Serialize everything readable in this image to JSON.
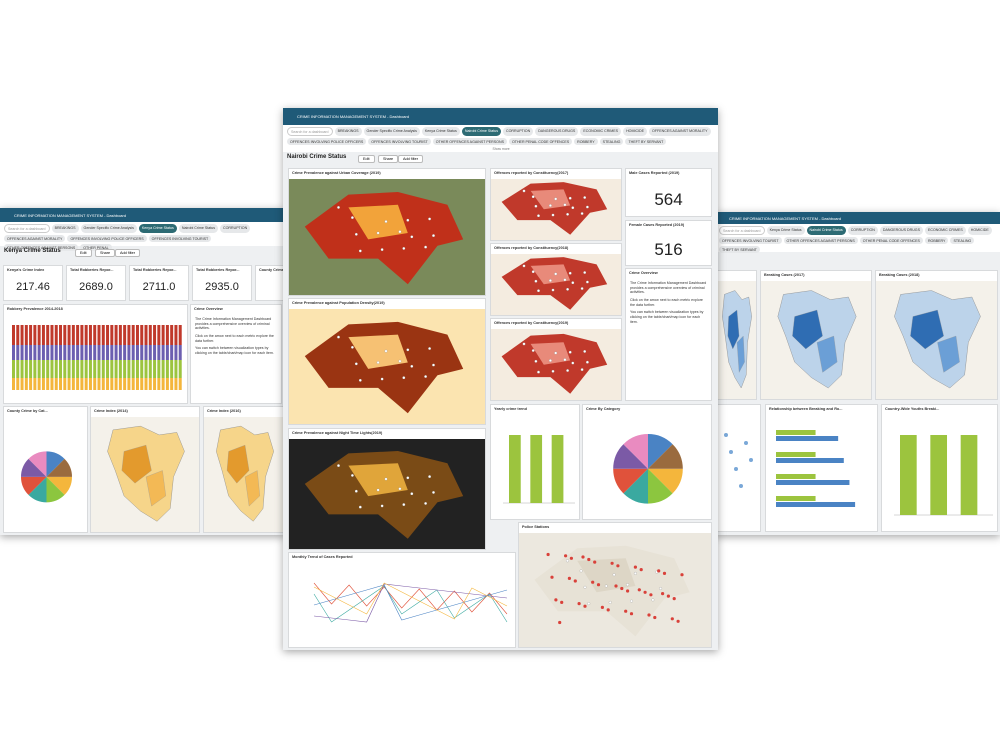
{
  "windows": [
    {
      "header": "CRIME INFORMATION MANAGEMENT SYSTEM - Dashboard",
      "search": "Search for a dashboard",
      "tabs": [
        "BREAKINGS",
        "Gender Specific Crime Analysis",
        "Kenya Crime Status",
        "Nairobi Crime Status",
        "CORRUPTION",
        "OFFENCES AGAINST MORALITY",
        "OFFENCES INVOLVING POLICE OFFICERS",
        "OFFENCES INVOLVING TOURIST",
        "OTHER OFFENCES AGAINST PERSONS",
        "OTHER PENAL"
      ],
      "active_tab": "Kenya Crime Status",
      "title": "Kenya Crime Status",
      "buttons": [
        "Edit",
        "Share",
        "Add filter"
      ],
      "tiles": [
        {
          "title": "Kenya's Crime Index",
          "value": "217.46"
        },
        {
          "title": "Total Robberies Repor...",
          "value": "2689.0"
        },
        {
          "title": "Total Robberies Repor...",
          "value": "2711.0"
        },
        {
          "title": "Total Robberies Repor...",
          "value": "2935.0"
        },
        {
          "title": "County Crime In",
          "value": ""
        }
      ],
      "panels": [
        "Robbery Prevalence 2014-2018",
        "Crime Overview",
        "County Crime by Cat...",
        "Crime Index (2014)",
        "Crime Index (2016)"
      ]
    },
    {
      "header": "CRIME INFORMATION MANAGEMENT SYSTEM - Dashboard",
      "search": "Search for a dashboard",
      "tabs": [
        "Kenya Crime Status",
        "Nairobi Crime Status",
        "CORRUPTION",
        "DANGEROUS DRUGS",
        "ECONOMIC CRIMES",
        "HOMICIDE",
        "OFFENCES INVOLVING TOURIST",
        "OTHER OFFENCES AGAINST PERSONS",
        "OTHER PENAL CODE OFFENCES",
        "ROBBERY",
        "STEALING",
        "THEFT BY SERVANT"
      ],
      "active_tab": "Nairobi Crime Status",
      "title": "",
      "buttons": [],
      "tiles": [],
      "panels": [
        "Breaking Cases (2017)",
        "Breaking Cases (2018)",
        "Relationship between Breaking and Ro...",
        "Country-Wide Youths Breaki..."
      ]
    },
    {
      "header": "CRIME INFORMATION MANAGEMENT SYSTEM - Dashboard",
      "search": "Search for a dashboard",
      "tabs": [
        "BREAKINGS",
        "Gender Specific Crime Analysis",
        "Kenya Crime Status",
        "Nairobi Crime Status",
        "CORRUPTION",
        "DANGEROUS DRUGS",
        "ECONOMIC CRIMES",
        "HOMICIDE",
        "OFFENCES AGAINST MORALITY",
        "OFFENCES INVOLVING POLICE OFFICERS",
        "OFFENCES INVOLVING TOURIST",
        "OTHER OFFENCES AGAINST PERSONS",
        "OTHER PENAL CODE OFFENCES",
        "ROBBERY",
        "STEALING",
        "THEFT BY SERVANT"
      ],
      "active_tab": "Nairobi Crime Status",
      "show_more": "Show more",
      "title": "Nairobi Crime Status",
      "buttons": [
        "Edit",
        "Share",
        "Add filter"
      ],
      "tiles": [
        {
          "title": "Male Cases Reported (2019)",
          "value": "564"
        },
        {
          "title": "Female Cases Reported (2019)",
          "value": "516"
        }
      ],
      "panels": [
        "Crime Prevalence against Urban Coverage (2019)",
        "Crime Prevalence against Population Density(2019)",
        "Crime Prevalence against Night Time Lights(2019)",
        "Offences reported by Constituency(2017)",
        "Offences reported by Constituency(2018)",
        "Offences reported by Constituency(2019)",
        "Crime Overview",
        "Yearly crime trend",
        "Crime By Category",
        "Police Stations",
        "Monthly Trend of Cases Reported"
      ],
      "overview": [
        "The Crime Information Management Dashboard provides a comprehensive overview of criminal activities.",
        "Click on the arrow next to each metric explore the data further.",
        "You can switch between visualization types by clicking on the table/chart/map icon for each item."
      ]
    }
  ]
}
